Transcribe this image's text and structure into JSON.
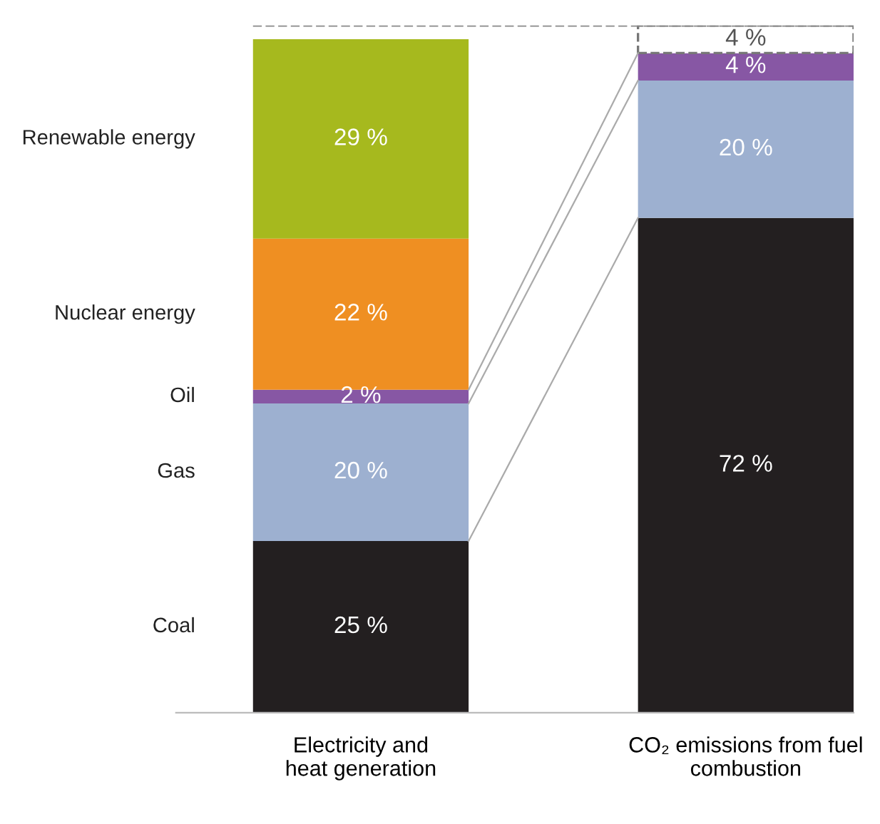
{
  "chart_data": {
    "type": "bar",
    "stacked": true,
    "categories": [
      "Electricity and\nheat generation",
      "CO₂ emissions from fuel\ncombustion"
    ],
    "series": [
      {
        "name": "Coal",
        "color": "#231f20",
        "values": [
          25,
          72
        ],
        "value_labels": [
          "25 %",
          "72 %"
        ]
      },
      {
        "name": "Gas",
        "color": "#9db0d0",
        "values": [
          20,
          20
        ],
        "value_labels": [
          "20 %",
          "20 %"
        ]
      },
      {
        "name": "Oil",
        "color": "#8757a4",
        "values": [
          2,
          4
        ],
        "value_labels": [
          "2 %",
          "4 %"
        ]
      },
      {
        "name": "Nuclear energy",
        "color": "#ef8f22",
        "values": [
          22,
          0
        ],
        "value_labels": [
          "22 %",
          null
        ]
      },
      {
        "name": "Renewable energy",
        "color": "#a6b91e",
        "values": [
          29,
          0
        ],
        "value_labels": [
          "29 %",
          null
        ]
      },
      {
        "color": "#ffffff",
        "line_style": "dashed",
        "values": [
          0,
          4
        ],
        "value_labels": [
          null,
          "4 %"
        ]
      }
    ],
    "ref_lines": [
      {
        "axis": "y",
        "value": 100,
        "line_style": "dashed",
        "color": "#888888"
      }
    ],
    "legend": false,
    "grid": false
  }
}
